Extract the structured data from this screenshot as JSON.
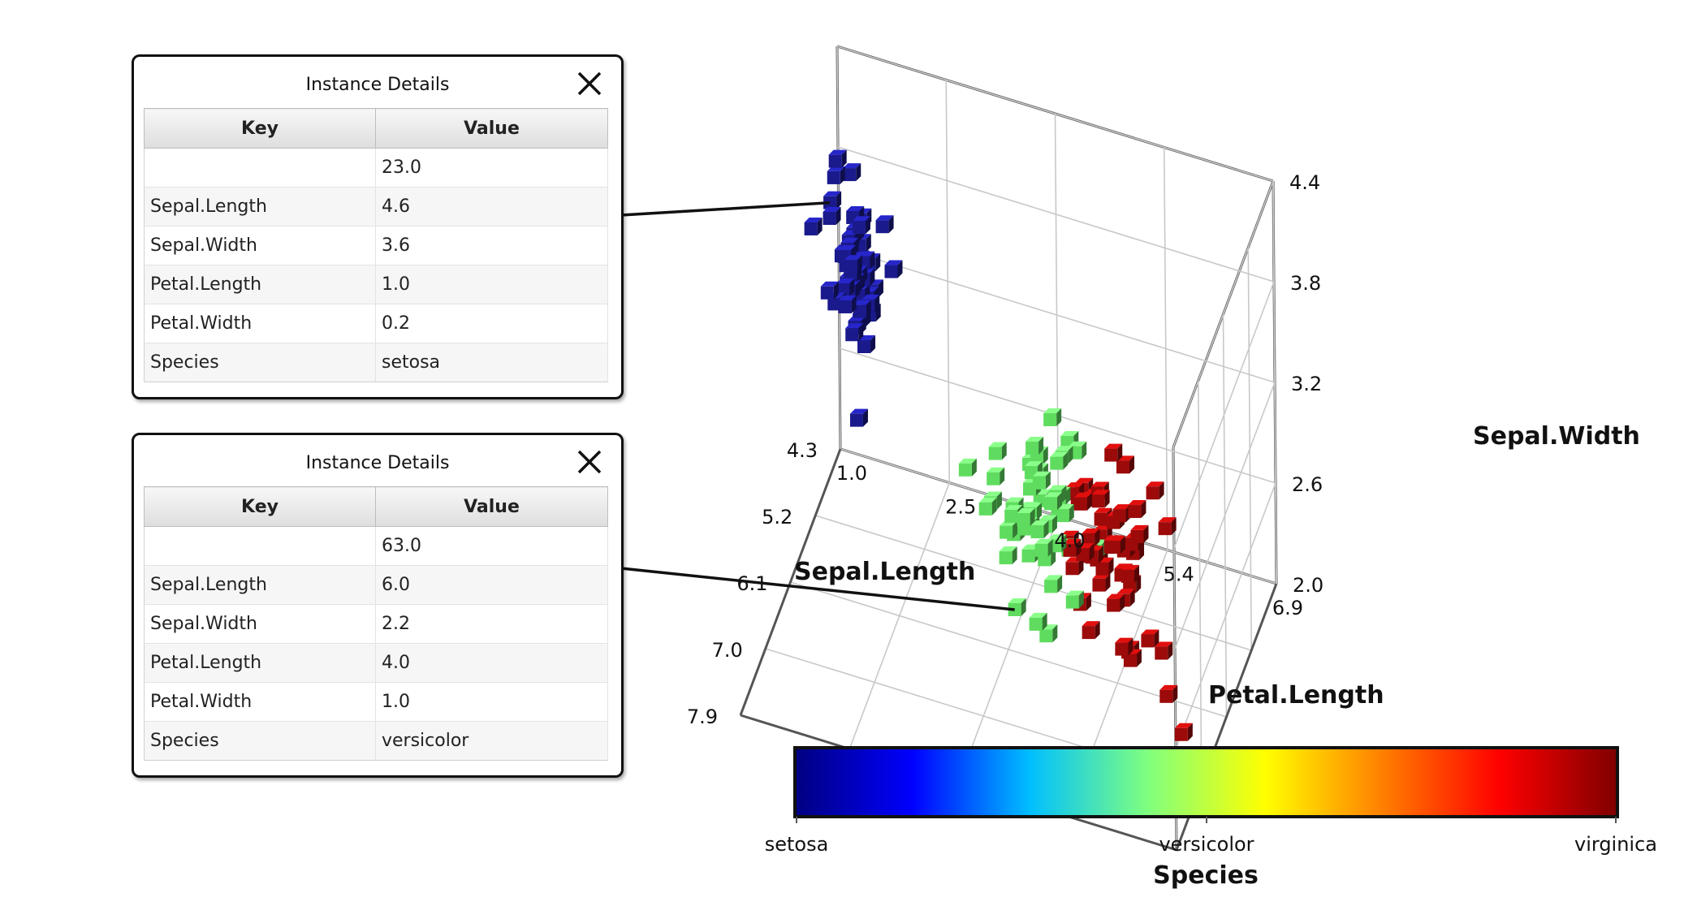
{
  "dialogs": [
    {
      "title": "Instance Details",
      "headers": {
        "key": "Key",
        "value": "Value"
      },
      "rows": [
        {
          "key": "",
          "value": "23.0"
        },
        {
          "key": "Sepal.Length",
          "value": "4.6"
        },
        {
          "key": "Sepal.Width",
          "value": "3.6"
        },
        {
          "key": "Petal.Length",
          "value": "1.0"
        },
        {
          "key": "Petal.Width",
          "value": "0.2"
        },
        {
          "key": "Species",
          "value": "setosa"
        }
      ]
    },
    {
      "title": "Instance Details",
      "headers": {
        "key": "Key",
        "value": "Value"
      },
      "rows": [
        {
          "key": "",
          "value": "63.0"
        },
        {
          "key": "Sepal.Length",
          "value": "6.0"
        },
        {
          "key": "Sepal.Width",
          "value": "2.2"
        },
        {
          "key": "Petal.Length",
          "value": "4.0"
        },
        {
          "key": "Petal.Width",
          "value": "1.0"
        },
        {
          "key": "Species",
          "value": "versicolor"
        }
      ]
    }
  ],
  "chart_data": {
    "type": "scatter",
    "grid": true,
    "axes": {
      "x": {
        "label": "Sepal.Length",
        "range": [
          4.3,
          7.9
        ],
        "ticks": [
          "4.3",
          "5.2",
          "6.1",
          "7.0",
          "7.9"
        ]
      },
      "y": {
        "label": "Petal.Length",
        "range": [
          1.0,
          6.9
        ],
        "ticks": [
          "1.0",
          "2.5",
          "4.0",
          "5.4",
          "6.9"
        ]
      },
      "z": {
        "label": "Sepal.Width",
        "range": [
          2.0,
          4.4
        ],
        "ticks": [
          "2.0",
          "2.6",
          "3.2",
          "3.8",
          "4.4"
        ]
      }
    },
    "colorbar": {
      "label": "Species",
      "ticks": [
        "setosa",
        "versicolor",
        "virginica"
      ],
      "colors": [
        "#00007f",
        "#0000ff",
        "#00bfff",
        "#7fff7f",
        "#ffff00",
        "#ff7f00",
        "#ff0000",
        "#7f0000"
      ]
    },
    "species_colors": {
      "setosa": "#1a1a8c",
      "versicolor": "#5fdc5f",
      "virginica": "#9c0a0a"
    },
    "highlighted": [
      {
        "sepal_length": 4.6,
        "petal_length": 1.0,
        "sepal_width": 3.6,
        "species": "setosa"
      },
      {
        "sepal_length": 6.0,
        "petal_length": 4.0,
        "sepal_width": 2.2,
        "species": "versicolor"
      }
    ],
    "series": [
      {
        "name": "setosa",
        "points": [
          [
            5.1,
            1.4,
            3.5
          ],
          [
            4.9,
            1.4,
            3.0
          ],
          [
            4.7,
            1.3,
            3.2
          ],
          [
            4.6,
            1.5,
            3.1
          ],
          [
            5.0,
            1.4,
            3.6
          ],
          [
            5.4,
            1.7,
            3.9
          ],
          [
            4.6,
            1.4,
            3.4
          ],
          [
            5.0,
            1.5,
            3.4
          ],
          [
            4.4,
            1.4,
            2.9
          ],
          [
            4.9,
            1.5,
            3.1
          ],
          [
            5.4,
            1.5,
            3.7
          ],
          [
            4.8,
            1.6,
            3.4
          ],
          [
            4.8,
            1.4,
            3.0
          ],
          [
            4.3,
            1.1,
            3.0
          ],
          [
            5.8,
            1.2,
            4.0
          ],
          [
            5.7,
            1.5,
            4.4
          ],
          [
            5.4,
            1.3,
            3.9
          ],
          [
            5.1,
            1.4,
            3.5
          ],
          [
            5.7,
            1.7,
            3.8
          ],
          [
            5.1,
            1.5,
            3.8
          ],
          [
            5.4,
            1.7,
            3.4
          ],
          [
            5.1,
            1.5,
            3.7
          ],
          [
            4.6,
            1.0,
            3.6
          ],
          [
            5.1,
            1.7,
            3.3
          ],
          [
            4.8,
            1.9,
            3.4
          ],
          [
            5.0,
            1.6,
            3.0
          ],
          [
            5.0,
            1.6,
            3.4
          ],
          [
            5.2,
            1.5,
            3.5
          ],
          [
            5.2,
            1.4,
            3.4
          ],
          [
            4.7,
            1.6,
            3.2
          ],
          [
            4.8,
            1.6,
            3.1
          ],
          [
            5.4,
            1.5,
            3.4
          ],
          [
            5.2,
            1.5,
            4.1
          ],
          [
            5.5,
            1.4,
            4.2
          ],
          [
            4.9,
            1.5,
            3.1
          ],
          [
            5.0,
            1.2,
            3.2
          ],
          [
            5.5,
            1.3,
            3.5
          ],
          [
            4.4,
            1.3,
            3.0
          ],
          [
            5.1,
            1.5,
            3.4
          ],
          [
            5.0,
            1.3,
            3.5
          ],
          [
            4.5,
            1.3,
            2.3
          ],
          [
            4.4,
            1.3,
            3.2
          ],
          [
            5.0,
            1.6,
            3.5
          ],
          [
            5.1,
            1.9,
            3.8
          ],
          [
            4.8,
            1.4,
            3.0
          ],
          [
            5.1,
            1.6,
            3.8
          ],
          [
            4.6,
            1.4,
            3.2
          ],
          [
            5.3,
            1.5,
            3.7
          ],
          [
            5.0,
            1.4,
            3.3
          ]
        ]
      },
      {
        "name": "versicolor",
        "points": [
          [
            7.0,
            4.7,
            3.2
          ],
          [
            6.4,
            4.5,
            3.2
          ],
          [
            6.9,
            4.9,
            3.1
          ],
          [
            5.5,
            4.0,
            2.3
          ],
          [
            6.5,
            4.6,
            2.8
          ],
          [
            5.7,
            4.5,
            2.8
          ],
          [
            6.3,
            4.7,
            3.3
          ],
          [
            4.9,
            3.3,
            2.4
          ],
          [
            6.6,
            4.6,
            2.9
          ],
          [
            5.2,
            3.9,
            2.7
          ],
          [
            5.0,
            3.5,
            2.0
          ],
          [
            5.9,
            4.2,
            3.0
          ],
          [
            6.0,
            4.0,
            2.2
          ],
          [
            6.1,
            4.7,
            2.9
          ],
          [
            5.6,
            3.6,
            2.9
          ],
          [
            6.7,
            4.4,
            3.1
          ],
          [
            5.6,
            4.5,
            3.0
          ],
          [
            5.8,
            4.1,
            2.7
          ],
          [
            6.2,
            4.5,
            2.2
          ],
          [
            5.6,
            3.9,
            2.5
          ],
          [
            5.9,
            4.8,
            3.2
          ],
          [
            6.1,
            4.0,
            2.8
          ],
          [
            6.3,
            4.9,
            2.5
          ],
          [
            6.4,
            4.3,
            2.9
          ],
          [
            6.6,
            4.4,
            3.0
          ],
          [
            6.8,
            4.8,
            2.8
          ],
          [
            6.7,
            5.0,
            3.0
          ],
          [
            6.0,
            4.5,
            2.9
          ],
          [
            5.7,
            3.5,
            2.6
          ],
          [
            5.5,
            3.8,
            2.4
          ],
          [
            5.5,
            3.7,
            2.4
          ],
          [
            5.8,
            3.9,
            2.7
          ],
          [
            6.0,
            5.1,
            2.7
          ],
          [
            5.4,
            4.5,
            3.0
          ],
          [
            6.0,
            4.5,
            3.4
          ],
          [
            6.7,
            4.7,
            3.1
          ],
          [
            6.3,
            4.4,
            2.3
          ],
          [
            5.6,
            4.1,
            3.0
          ],
          [
            5.5,
            4.0,
            2.5
          ],
          [
            5.5,
            4.4,
            2.6
          ],
          [
            6.1,
            4.6,
            3.0
          ],
          [
            5.8,
            4.0,
            2.6
          ],
          [
            5.0,
            3.3,
            2.3
          ],
          [
            5.6,
            4.2,
            2.7
          ],
          [
            5.7,
            4.2,
            3.0
          ],
          [
            5.7,
            4.2,
            2.9
          ],
          [
            6.2,
            4.3,
            2.9
          ],
          [
            5.1,
            3.0,
            2.5
          ],
          [
            5.7,
            4.1,
            2.8
          ]
        ]
      },
      {
        "name": "virginica",
        "points": [
          [
            6.3,
            6.0,
            3.3
          ],
          [
            5.8,
            5.1,
            2.7
          ],
          [
            7.1,
            5.9,
            3.0
          ],
          [
            6.3,
            5.6,
            2.9
          ],
          [
            6.5,
            5.8,
            3.0
          ],
          [
            7.6,
            6.6,
            3.0
          ],
          [
            4.9,
            4.5,
            2.5
          ],
          [
            7.3,
            6.3,
            2.9
          ],
          [
            6.7,
            5.8,
            2.5
          ],
          [
            7.2,
            6.1,
            3.6
          ],
          [
            6.5,
            5.1,
            3.2
          ],
          [
            6.4,
            5.3,
            2.7
          ],
          [
            6.8,
            5.5,
            3.0
          ],
          [
            5.7,
            5.0,
            2.5
          ],
          [
            5.8,
            5.1,
            2.8
          ],
          [
            6.4,
            5.3,
            3.2
          ],
          [
            6.5,
            5.5,
            3.0
          ],
          [
            7.7,
            6.7,
            3.8
          ],
          [
            7.7,
            6.9,
            2.6
          ],
          [
            6.0,
            5.0,
            2.2
          ],
          [
            6.9,
            5.7,
            3.2
          ],
          [
            5.6,
            4.9,
            2.8
          ],
          [
            7.7,
            6.7,
            2.8
          ],
          [
            6.3,
            4.9,
            2.7
          ],
          [
            6.7,
            5.7,
            3.3
          ],
          [
            7.2,
            6.0,
            3.2
          ],
          [
            6.2,
            4.8,
            2.8
          ],
          [
            6.1,
            4.9,
            3.0
          ],
          [
            6.4,
            5.6,
            2.8
          ],
          [
            7.2,
            5.8,
            3.0
          ],
          [
            7.4,
            6.1,
            2.8
          ],
          [
            7.9,
            6.4,
            3.8
          ],
          [
            6.4,
            5.6,
            2.8
          ],
          [
            6.3,
            5.1,
            2.8
          ],
          [
            6.1,
            5.6,
            2.6
          ],
          [
            7.7,
            6.1,
            3.0
          ],
          [
            6.3,
            5.6,
            3.4
          ],
          [
            6.4,
            5.5,
            3.1
          ],
          [
            6.0,
            4.8,
            3.0
          ],
          [
            6.9,
            5.4,
            3.1
          ],
          [
            6.7,
            5.6,
            3.1
          ],
          [
            6.9,
            5.1,
            3.1
          ],
          [
            6.8,
            5.9,
            3.2
          ],
          [
            6.7,
            5.7,
            3.3
          ],
          [
            6.7,
            5.2,
            3.0
          ],
          [
            6.3,
            5.0,
            2.5
          ],
          [
            6.5,
            5.2,
            3.0
          ],
          [
            6.2,
            5.4,
            3.4
          ],
          [
            5.9,
            5.1,
            3.0
          ]
        ]
      }
    ]
  }
}
